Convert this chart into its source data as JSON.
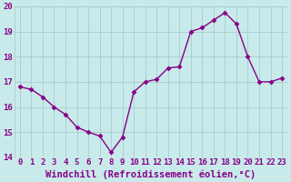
{
  "x": [
    0,
    1,
    2,
    3,
    4,
    5,
    6,
    7,
    8,
    9,
    10,
    11,
    12,
    13,
    14,
    15,
    16,
    17,
    18,
    19,
    20,
    21,
    22,
    23
  ],
  "y": [
    16.8,
    16.7,
    16.4,
    16.0,
    15.7,
    15.2,
    15.0,
    14.85,
    14.2,
    14.8,
    16.6,
    17.0,
    17.1,
    17.55,
    17.6,
    19.0,
    19.15,
    19.45,
    19.75,
    19.3,
    18.0,
    17.0,
    17.0,
    17.15
  ],
  "line_color": "#880088",
  "marker": "D",
  "marker_size": 2.5,
  "bg_color": "#c8eaea",
  "grid_color": "#aacccc",
  "xlabel": "Windchill (Refroidissement éolien,°C)",
  "xlabel_color": "#880088",
  "tick_color": "#880088",
  "ylim": [
    14,
    20
  ],
  "xlim_min": -0.5,
  "xlim_max": 23.5,
  "yticks": [
    14,
    15,
    16,
    17,
    18,
    19,
    20
  ],
  "xticks": [
    0,
    1,
    2,
    3,
    4,
    5,
    6,
    7,
    8,
    9,
    10,
    11,
    12,
    13,
    14,
    15,
    16,
    17,
    18,
    19,
    20,
    21,
    22,
    23
  ],
  "xlabel_fontsize": 7.5,
  "tick_fontsize": 6.5,
  "line_width": 1.0,
  "fig_width": 3.2,
  "fig_height": 2.0,
  "dpi": 100
}
